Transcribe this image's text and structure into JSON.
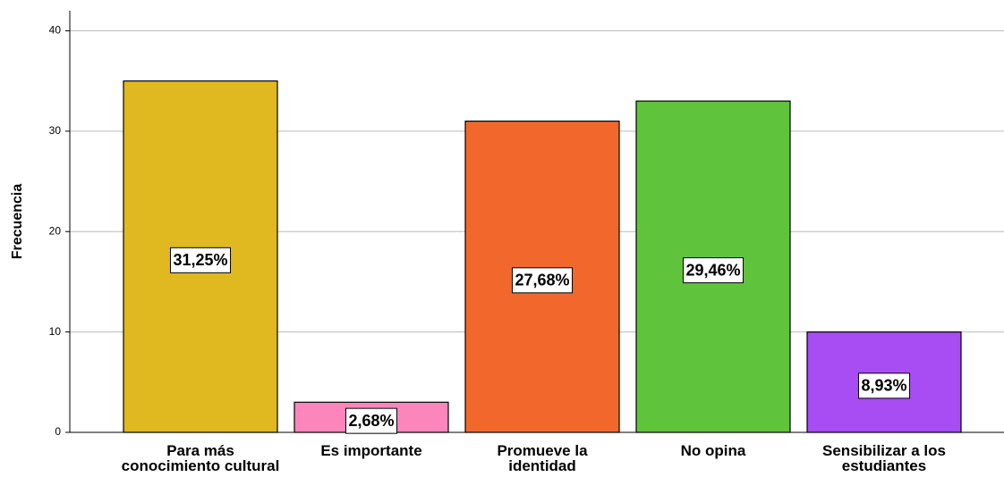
{
  "chart_data": {
    "type": "bar",
    "y_label": "Frecuencia",
    "categories": [
      "Para más conocimiento cultural",
      "Es importante",
      "Promueve la identidad",
      "No opina",
      "Sensibilizar a los estudiantes"
    ],
    "values": [
      35,
      3,
      31,
      33,
      10
    ],
    "percent_labels": [
      "31,25%",
      "2,68%",
      "27,68%",
      "29,46%",
      "8,93%"
    ],
    "colors": [
      "#e0b920",
      "#fc86bb",
      "#f2682c",
      "#5fc43b",
      "#a84cf4"
    ],
    "ylim": [
      0,
      42
    ],
    "yticks": [
      0,
      10,
      20,
      30,
      40
    ],
    "grid": true
  }
}
